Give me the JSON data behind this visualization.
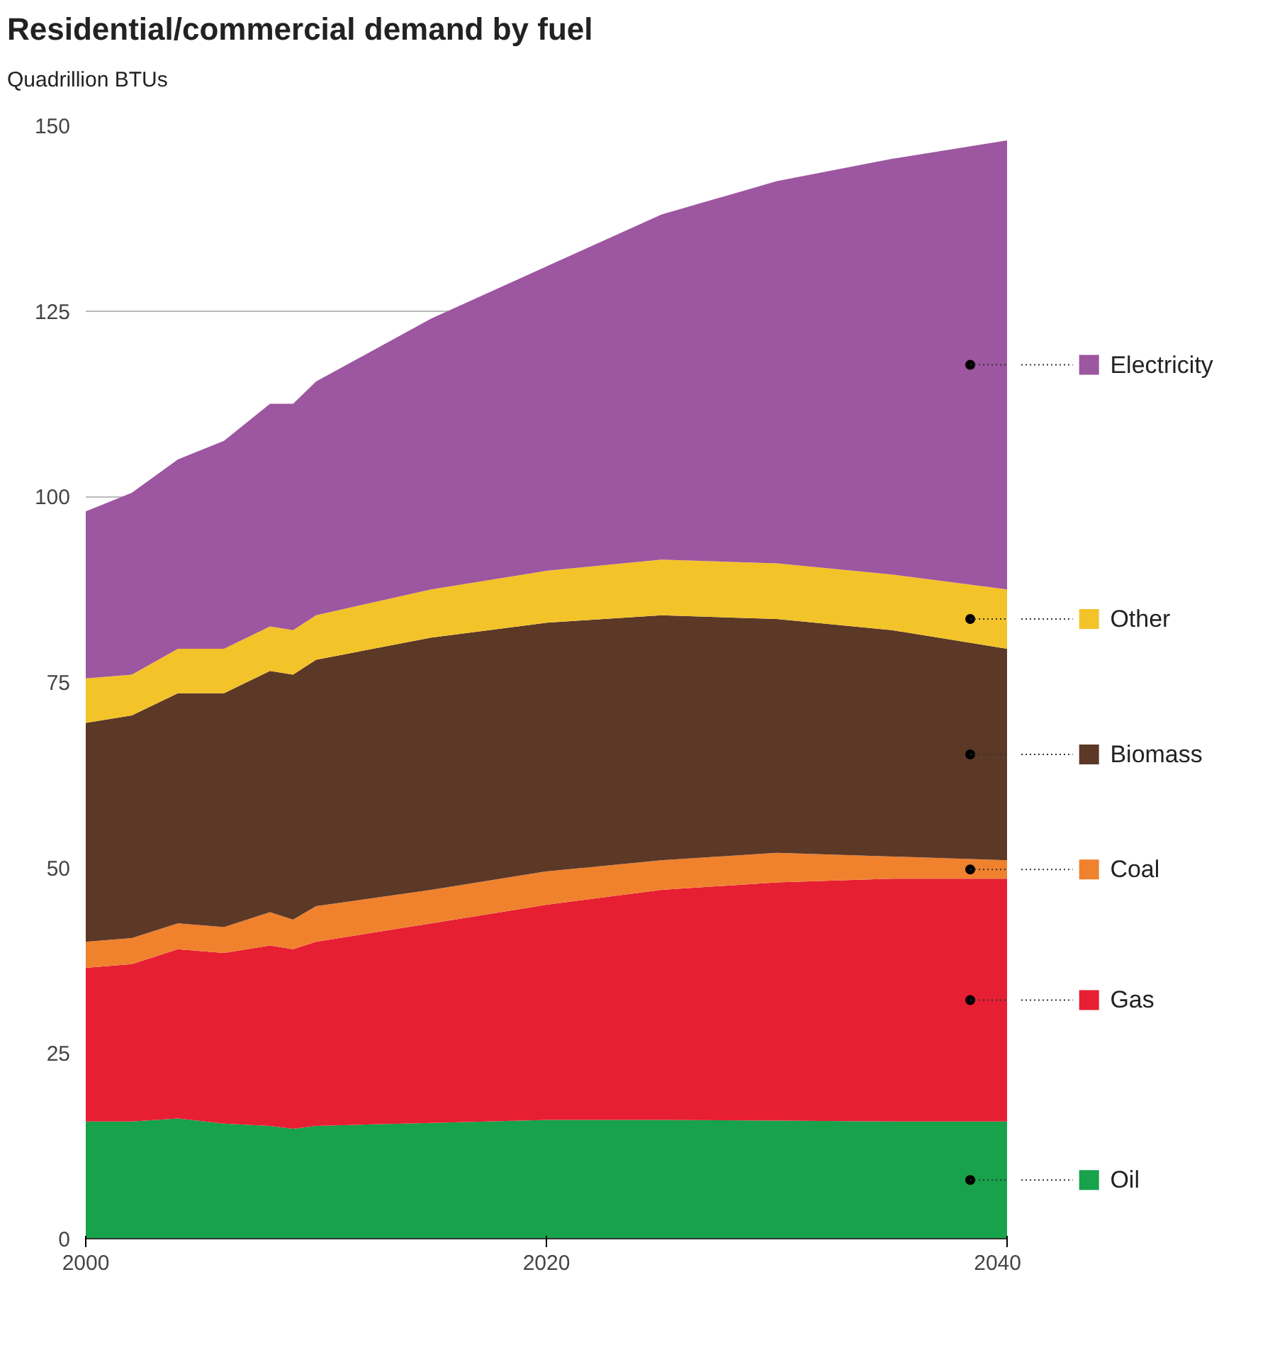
{
  "chart_data": {
    "type": "area",
    "stacked": true,
    "title": "Residential/commercial demand by fuel",
    "subtitle": "Quadrillion BTUs",
    "x": [
      2000,
      2002,
      2004,
      2006,
      2008,
      2009,
      2010,
      2015,
      2020,
      2025,
      2030,
      2035,
      2040
    ],
    "series": [
      {
        "name": "Oil",
        "color": "#17a24b",
        "values": [
          15.8,
          15.8,
          16.2,
          15.5,
          15.2,
          14.8,
          15.2,
          15.6,
          16,
          16,
          15.9,
          15.8,
          15.8
        ]
      },
      {
        "name": "Gas",
        "color": "#e61f33",
        "values": [
          20.7,
          21.2,
          22.8,
          23,
          24.3,
          24.2,
          24.8,
          26.9,
          29,
          31,
          32.1,
          32.7,
          32.7
        ]
      },
      {
        "name": "Coal",
        "color": "#f0822e",
        "values": [
          3.5,
          3.5,
          3.5,
          3.5,
          4.5,
          4,
          4.8,
          4.5,
          4.5,
          4,
          4,
          3,
          2.5
        ]
      },
      {
        "name": "Biomass",
        "color": "#5c3827",
        "values": [
          29.5,
          30,
          31,
          31.5,
          32.5,
          33,
          33.2,
          34,
          33.5,
          33,
          31.5,
          30.5,
          28.5
        ]
      },
      {
        "name": "Other",
        "color": "#f3c32a",
        "values": [
          6,
          5.5,
          6,
          6,
          6,
          6,
          6,
          6.5,
          7,
          7.5,
          7.5,
          7.5,
          8
        ]
      },
      {
        "name": "Electricity",
        "color": "#9d56a0",
        "values": [
          22.5,
          24.5,
          25.5,
          28,
          30,
          30.5,
          31.5,
          36.5,
          41,
          46.5,
          51.5,
          56,
          60.5
        ]
      }
    ],
    "xlim": [
      2000,
      2040
    ],
    "xticks": [
      2000,
      2020,
      2040
    ],
    "ylim": [
      0,
      150
    ],
    "yticks": [
      0,
      25,
      50,
      75,
      100,
      125,
      150
    ],
    "grid": "y",
    "legend": "right"
  }
}
